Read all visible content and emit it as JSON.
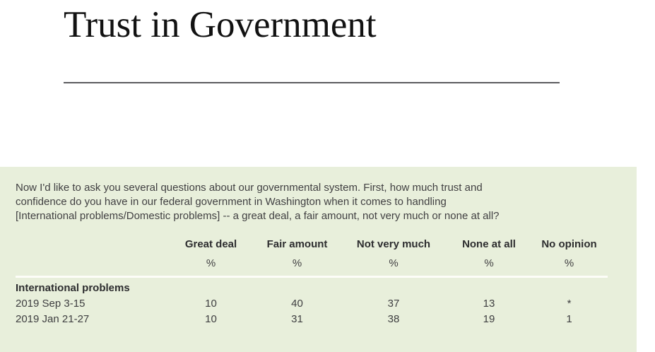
{
  "header": {
    "title": "Trust in Government"
  },
  "question": {
    "text": "Now I'd like to ask you several questions about our governmental system. First, how much trust and confidence do you have in our federal government in Washington when it comes to handling [International problems/Domestic problems] -- a great deal, a fair amount, not very much or none at all?"
  },
  "table": {
    "columns": [
      "Great deal",
      "Fair amount",
      "Not very much",
      "None at all",
      "No opinion"
    ],
    "units": [
      "%",
      "%",
      "%",
      "%",
      "%"
    ],
    "sections": [
      {
        "label": "International problems",
        "rows": [
          {
            "date": "2019 Sep 3-15",
            "values": [
              "10",
              "40",
              "37",
              "13",
              "*"
            ]
          },
          {
            "date": "2019 Jan 21-27",
            "values": [
              "10",
              "31",
              "38",
              "19",
              "1"
            ]
          }
        ]
      }
    ]
  },
  "colors": {
    "panel_background": "#e8efdb",
    "title_text": "#121212",
    "body_text": "#414042",
    "header_divider": "#5b5b5e",
    "table_rule": "#fdfdf8"
  }
}
